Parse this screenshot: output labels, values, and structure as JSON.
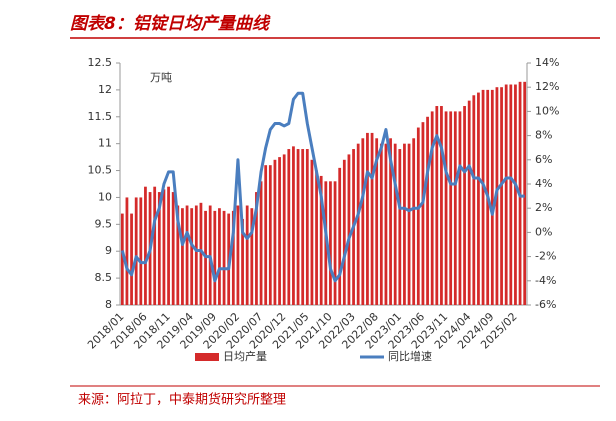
{
  "chart_data": {
    "type": "bar-line",
    "title": "图表8：铝锭日均产量曲线",
    "unit_label": "万吨",
    "source": "来源：阿拉丁，中泰期货研究所整理",
    "categories": [
      "2018/01",
      null,
      null,
      null,
      null,
      "2018/06",
      null,
      null,
      null,
      null,
      "2018/11",
      null,
      null,
      null,
      null,
      "2019/04",
      null,
      null,
      null,
      null,
      "2019/09",
      null,
      null,
      null,
      null,
      "2020/02",
      null,
      null,
      null,
      null,
      "2020/07",
      null,
      null,
      null,
      null,
      "2020/12",
      null,
      null,
      null,
      null,
      "2021/05",
      null,
      null,
      null,
      null,
      "2021/10",
      null,
      null,
      null,
      null,
      "2022/03",
      null,
      null,
      null,
      null,
      "2022/08",
      null,
      null,
      null,
      null,
      "2023/01",
      null,
      null,
      null,
      null,
      "2023/06",
      null,
      null,
      null,
      null,
      "2023/11",
      null,
      null,
      null,
      null,
      "2024/04",
      null,
      null,
      null,
      null,
      "2024/09",
      null,
      null,
      null,
      null,
      "2025/02",
      null,
      null
    ],
    "series": [
      {
        "name": "日均产量",
        "type": "bar",
        "color": "#d42a2a",
        "values": [
          9.7,
          10.0,
          9.7,
          10.0,
          10.0,
          10.2,
          10.1,
          10.2,
          10.1,
          10.15,
          10.2,
          10.1,
          9.85,
          9.8,
          9.85,
          9.8,
          9.85,
          9.9,
          9.75,
          9.85,
          9.75,
          9.8,
          9.75,
          9.7,
          9.75,
          9.85,
          9.6,
          9.85,
          9.8,
          10.1,
          10.3,
          10.6,
          10.6,
          10.7,
          10.75,
          10.8,
          10.9,
          10.95,
          10.9,
          10.9,
          10.9,
          10.7,
          10.5,
          10.4,
          10.3,
          10.3,
          10.3,
          10.55,
          10.7,
          10.8,
          10.9,
          11.0,
          11.1,
          11.2,
          11.2,
          11.1,
          11.0,
          11.0,
          11.1,
          11.0,
          10.9,
          11.0,
          11.0,
          11.1,
          11.3,
          11.4,
          11.5,
          11.6,
          11.7,
          11.7,
          11.6,
          11.6,
          11.6,
          11.6,
          11.7,
          11.8,
          11.9,
          11.95,
          12.0,
          12.0,
          12.0,
          12.05,
          12.05,
          12.1,
          12.1,
          12.1,
          12.15,
          12.15
        ]
      },
      {
        "name": "同比增速",
        "type": "line",
        "axis": "y2",
        "color": "#4a7ebf",
        "values": [
          -1.5,
          -3,
          -3.5,
          -2,
          -2.5,
          -2.5,
          -1.5,
          1,
          2,
          4,
          5,
          5,
          1,
          -1,
          0,
          -1,
          -1.5,
          -1.5,
          -2,
          -2,
          -4,
          -3,
          -3,
          -3,
          0,
          6,
          0,
          -0.5,
          0,
          2,
          5,
          7,
          8.5,
          9,
          9,
          8.8,
          9,
          11,
          11.5,
          11.5,
          9,
          7,
          5,
          3,
          0,
          -3,
          -4,
          -3.5,
          -2,
          -0.5,
          0.5,
          1.5,
          3,
          5,
          4.5,
          6,
          7,
          8.5,
          6,
          4,
          2,
          2,
          1.8,
          2,
          2,
          2.5,
          5,
          7,
          8,
          7,
          5,
          4,
          4,
          5.5,
          5,
          5.5,
          4.5,
          4.5,
          4,
          3,
          1.5,
          3.5,
          4,
          4.5,
          4.5,
          4,
          3,
          3
        ]
      }
    ],
    "ylim": [
      8,
      12.5
    ],
    "yticks": [
      8,
      8.5,
      9,
      9.5,
      10,
      10.5,
      11,
      11.5,
      12,
      12.5
    ],
    "y2lim": [
      -6,
      14
    ],
    "y2ticks": [
      {
        "value": -6,
        "label": "-6%"
      },
      {
        "value": -4,
        "label": "-4%"
      },
      {
        "value": -2,
        "label": "-2%"
      },
      {
        "value": 0,
        "label": "0%"
      },
      {
        "value": 2,
        "label": "2%"
      },
      {
        "value": 4,
        "label": "4%"
      },
      {
        "value": 6,
        "label": "6%"
      },
      {
        "value": 8,
        "label": "8%"
      },
      {
        "value": 10,
        "label": "10%"
      },
      {
        "value": 12,
        "label": "12%"
      },
      {
        "value": 14,
        "label": "14%"
      }
    ],
    "legend": "bottom"
  }
}
